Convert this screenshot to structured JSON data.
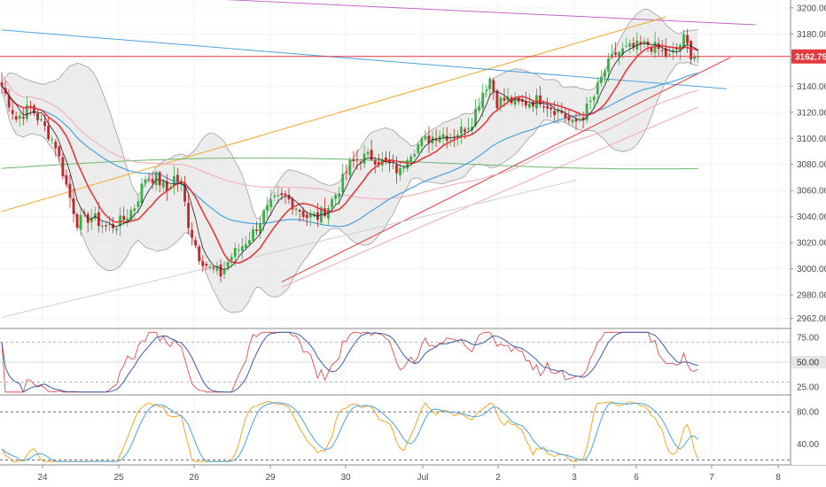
{
  "chart_data": {
    "type": "candlestick",
    "x_range": [
      "Jun 23",
      "Jul 8"
    ],
    "x_ticks": [
      "24",
      "25",
      "26",
      "29",
      "30",
      "Jul",
      "2",
      "3",
      "6",
      "7",
      "8"
    ],
    "y_range": [
      2955,
      3206
    ],
    "y_ticks": [
      "3200.00",
      "3180.00",
      "3160.00",
      "3140.00",
      "3120.00",
      "3100.00",
      "3080.00",
      "3060.00",
      "3040.00",
      "3020.00",
      "3000.00",
      "2980.00",
      "2962.00"
    ],
    "last_price": "3162.75",
    "price_anchors": [
      {
        "bar": 0,
        "price": 3140
      },
      {
        "bar": 4,
        "price": 3115
      },
      {
        "bar": 8,
        "price": 3124
      },
      {
        "bar": 12,
        "price": 3108
      },
      {
        "bar": 15,
        "price": 3095
      },
      {
        "bar": 18,
        "price": 3064
      },
      {
        "bar": 21,
        "price": 3036
      },
      {
        "bar": 25,
        "price": 3040
      },
      {
        "bar": 29,
        "price": 3032
      },
      {
        "bar": 32,
        "price": 3034
      },
      {
        "bar": 34,
        "price": 3038
      },
      {
        "bar": 37,
        "price": 3048
      },
      {
        "bar": 40,
        "price": 3070
      },
      {
        "bar": 43,
        "price": 3070
      },
      {
        "bar": 46,
        "price": 3060
      },
      {
        "bar": 48,
        "price": 3070
      },
      {
        "bar": 50,
        "price": 3065
      },
      {
        "bar": 52,
        "price": 3035
      },
      {
        "bar": 55,
        "price": 3010
      },
      {
        "bar": 58,
        "price": 3000
      },
      {
        "bar": 61,
        "price": 2996
      },
      {
        "bar": 64,
        "price": 3010
      },
      {
        "bar": 67,
        "price": 3018
      },
      {
        "bar": 70,
        "price": 3028
      },
      {
        "bar": 73,
        "price": 3042
      },
      {
        "bar": 76,
        "price": 3052
      },
      {
        "bar": 79,
        "price": 3055
      },
      {
        "bar": 82,
        "price": 3048
      },
      {
        "bar": 85,
        "price": 3040
      },
      {
        "bar": 88,
        "price": 3040
      },
      {
        "bar": 91,
        "price": 3048
      },
      {
        "bar": 94,
        "price": 3062
      },
      {
        "bar": 97,
        "price": 3080
      },
      {
        "bar": 100,
        "price": 3085
      },
      {
        "bar": 103,
        "price": 3086
      },
      {
        "bar": 106,
        "price": 3082
      },
      {
        "bar": 109,
        "price": 3078
      },
      {
        "bar": 111,
        "price": 3074
      },
      {
        "bar": 113,
        "price": 3088
      },
      {
        "bar": 116,
        "price": 3095
      },
      {
        "bar": 119,
        "price": 3100
      },
      {
        "bar": 122,
        "price": 3104
      },
      {
        "bar": 125,
        "price": 3102
      },
      {
        "bar": 128,
        "price": 3106
      },
      {
        "bar": 131,
        "price": 3114
      },
      {
        "bar": 134,
        "price": 3136
      },
      {
        "bar": 136,
        "price": 3146
      },
      {
        "bar": 138,
        "price": 3128
      },
      {
        "bar": 141,
        "price": 3130
      },
      {
        "bar": 144,
        "price": 3126
      },
      {
        "bar": 147,
        "price": 3128
      },
      {
        "bar": 150,
        "price": 3130
      },
      {
        "bar": 153,
        "price": 3124
      },
      {
        "bar": 156,
        "price": 3120
      },
      {
        "bar": 159,
        "price": 3110
      },
      {
        "bar": 162,
        "price": 3118
      },
      {
        "bar": 165,
        "price": 3132
      },
      {
        "bar": 168,
        "price": 3152
      },
      {
        "bar": 171,
        "price": 3165
      },
      {
        "bar": 174,
        "price": 3168
      },
      {
        "bar": 177,
        "price": 3170
      },
      {
        "bar": 180,
        "price": 3172
      },
      {
        "bar": 183,
        "price": 3168
      },
      {
        "bar": 186,
        "price": 3162
      },
      {
        "bar": 188,
        "price": 3168
      },
      {
        "bar": 190,
        "price": 3176
      },
      {
        "bar": 192,
        "price": 3165
      },
      {
        "bar": 194,
        "price": 3163
      }
    ],
    "horizontal_line": {
      "price": 3162.75,
      "color": "#e5393e"
    },
    "trendlines": [
      {
        "name": "purple-resistance",
        "from": {
          "bar": 34,
          "price": 3210
        },
        "to": {
          "bar": 210,
          "price": 3187
        },
        "color": "#c466c9"
      },
      {
        "name": "orange-channel",
        "from": {
          "bar": 0,
          "price": 3044
        },
        "to": {
          "bar": 185,
          "price": 3193
        },
        "color": "#f5a623"
      },
      {
        "name": "blue-downtrend",
        "from": {
          "bar": 0,
          "price": 3183
        },
        "to": {
          "bar": 202,
          "price": 3138
        },
        "color": "#4aa3df"
      },
      {
        "name": "red-support",
        "from": {
          "bar": 78,
          "price": 2990
        },
        "to": {
          "bar": 203,
          "price": 3162
        },
        "color": "#e5393e"
      },
      {
        "name": "pink-support",
        "from": {
          "bar": 78,
          "price": 2986
        },
        "to": {
          "bar": 194,
          "price": 3124
        },
        "color": "#f2a6b8"
      },
      {
        "name": "grey-longterm",
        "from": {
          "bar": 0,
          "price": 2963
        },
        "to": {
          "bar": 160,
          "price": 3068
        },
        "color": "#cfcfcf"
      }
    ],
    "colors": {
      "up_candle": "#3cae47",
      "down_candle": "#c6262b",
      "ma_fast": "#222222",
      "ma_mid": "#e5393e",
      "ma_slow": "#4aa3df",
      "ma_long": "#f2a6b8",
      "ma_xlong": "#6bb86b",
      "bollinger": "#9e9e9e",
      "bollinger_fill": "#e6e6e6"
    },
    "rsi_panel": {
      "y_range": [
        18,
        82
      ],
      "y_ticks": [
        "75.00",
        "50.00",
        "25.00"
      ],
      "current": "50.00",
      "levels": [
        70,
        30
      ],
      "colors": {
        "rsi": "#e5393e",
        "signal": "#3b5ba9"
      }
    },
    "stoch_panel": {
      "y_range": [
        15,
        100
      ],
      "y_ticks": [
        "80.00",
        "40.00"
      ],
      "levels": [
        80,
        20
      ],
      "colors": {
        "k": "#f5a623",
        "d": "#4aa3df"
      }
    }
  }
}
